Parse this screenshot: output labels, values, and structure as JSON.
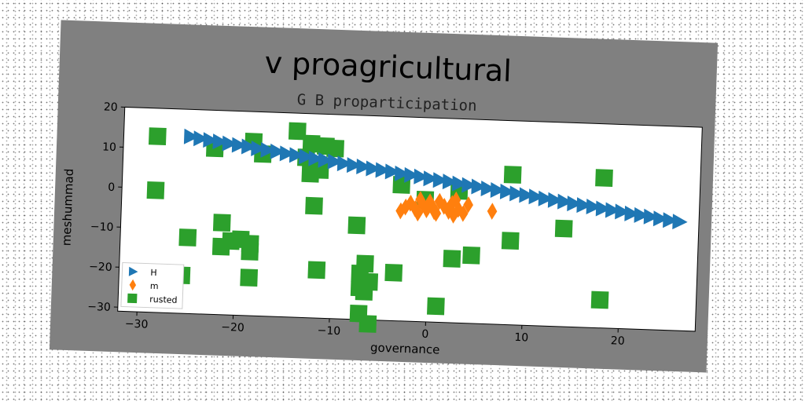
{
  "chart_data": {
    "type": "scatter",
    "title": "v proagricultural",
    "subtitle": "G B proparticipation",
    "xlabel": "governance",
    "ylabel": "meshummad",
    "xlim": [
      -32,
      28
    ],
    "ylim": [
      -31,
      20
    ],
    "xticks": [
      -30,
      -20,
      -10,
      0,
      10,
      20
    ],
    "yticks": [
      -30,
      -20,
      -10,
      0,
      10,
      20
    ],
    "xtick_labels": [
      "−30",
      "−20",
      "−10",
      "0",
      "10",
      "20"
    ],
    "ytick_labels": [
      "−30",
      "−20",
      "−10",
      "0",
      "10",
      "20"
    ],
    "legend_position": "lower-left",
    "grid": false,
    "series": [
      {
        "name": "H",
        "marker": "triangle-right",
        "color": "#1f77b4",
        "x": [
          -25,
          -24,
          -23,
          -22,
          -21,
          -20,
          -19,
          -18,
          -17,
          -16,
          -15,
          -14,
          -13,
          -12,
          -11,
          -10,
          -9,
          -8,
          -7,
          -6,
          -5,
          -4,
          -3,
          -2,
          -1,
          0,
          1,
          2,
          3,
          4,
          5,
          6,
          7,
          8,
          9,
          10,
          11,
          12,
          13,
          14,
          15,
          16,
          17,
          18,
          19,
          20,
          21,
          22,
          23,
          24,
          25,
          26
        ],
        "y": [
          13.2,
          12.8,
          12.5,
          12.2,
          11.8,
          11.5,
          11.2,
          10.8,
          10.5,
          10.2,
          9.8,
          9.5,
          9.2,
          8.8,
          8.5,
          8.2,
          7.8,
          7.5,
          7.2,
          6.8,
          6.5,
          6.2,
          5.8,
          5.5,
          5.2,
          4.8,
          4.5,
          4.2,
          3.8,
          3.5,
          3.2,
          2.8,
          2.5,
          2.2,
          1.8,
          1.5,
          1.2,
          0.8,
          0.5,
          0.2,
          -0.2,
          -0.5,
          -0.8,
          -1.2,
          -1.5,
          -1.8,
          -2.2,
          -2.5,
          -2.8,
          -3.2,
          -3.5,
          -3.8
        ]
      },
      {
        "name": "m",
        "marker": "diamond",
        "color": "#ff7f0e",
        "x": [
          -3,
          -2.5,
          -2,
          -1.5,
          -1,
          -0.7,
          -0.3,
          0,
          0.3,
          0.7,
          1,
          1.5,
          2,
          2.3,
          2.7,
          3,
          3.5,
          4,
          6.5,
          -1.2,
          0.5,
          2.5
        ],
        "y": [
          -3.5,
          -2.5,
          -1.5,
          -2.8,
          -0.5,
          -1.8,
          -3,
          -1,
          -2.2,
          -3.8,
          -0.8,
          -2,
          -3.2,
          -1.2,
          -0.3,
          -2.6,
          -3.6,
          -1.4,
          -2.8,
          -3.9,
          -3.4,
          -4.1
        ]
      },
      {
        "name": "rusted",
        "marker": "square",
        "color": "#2ca02c",
        "x": [
          -28.5,
          -22.5,
          -18.5,
          -17.5,
          -14,
          -12.5,
          -11,
          -10,
          -28.5,
          -13,
          -11.5,
          -12.5,
          -3,
          3,
          -12,
          -7.5,
          8.5,
          -21.5,
          -25,
          -21.5,
          -19.5,
          -18.5,
          -20.5,
          -18.5,
          -25.5,
          -18.5,
          -11.5,
          -7,
          -6.5,
          -3.5,
          2.5,
          4.5,
          -7,
          -6,
          -6.5,
          1,
          -7,
          -6,
          8.5,
          14,
          18,
          18,
          -0.5
        ],
        "y": [
          13,
          10.5,
          12.5,
          9.5,
          15.5,
          12.5,
          12,
          11.5,
          -0.5,
          9,
          6,
          5,
          3,
          2,
          -3,
          -7.5,
          6.5,
          -8,
          -12,
          -14,
          -12,
          -15,
          -12.5,
          -13,
          -21.5,
          -21.5,
          -19,
          -19.5,
          -17,
          -19,
          -15,
          -14,
          -23,
          -21.5,
          -24,
          -27,
          -29.5,
          -32,
          -10,
          -6.5,
          6.5,
          -24,
          -0.5
        ]
      }
    ]
  }
}
